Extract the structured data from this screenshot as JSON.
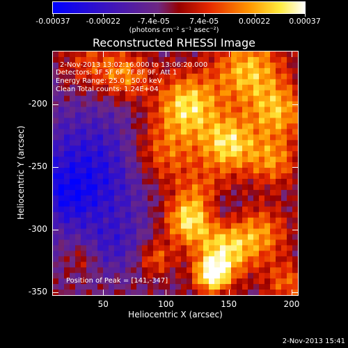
{
  "colorbar": {
    "ticks": [
      "-0.00037",
      "-0.00022",
      "-7.4e-05",
      "7.4e-05",
      "0.00022",
      "0.00037"
    ],
    "unit": "(photons cm⁻² s⁻¹ asec⁻²)"
  },
  "title": "Reconstructed RHESSI Image",
  "info": {
    "time_range": "2-Nov-2013 13:02:16.000 to 13:06:20.000",
    "detectors": "Detectors: 3F 5F 6F 7F 8F 9F, Att 1",
    "energy_range": "Energy Range: 25.0 - 50.0 keV",
    "clean": "Clean    Total counts: 1.24E+04",
    "peak": "Position of Peak = [141,-347]"
  },
  "timestamp": "2-Nov-2013 15:41",
  "chart_data": {
    "type": "heatmap",
    "title": "Reconstructed RHESSI Image",
    "xlabel": "Heliocentric X (arcsec)",
    "ylabel": "Heliocentric Y (arcsec)",
    "xlim": [
      10,
      205
    ],
    "ylim": [
      -352,
      -158
    ],
    "x_ticks": [
      50,
      100,
      150,
      200
    ],
    "y_ticks": [
      -350,
      -300,
      -250,
      -200
    ],
    "colorbar_range": [
      -0.00037,
      0.00037
    ],
    "colormap": "purple-blue to red-orange-yellow-white",
    "peak_position": [
      141,
      -347
    ]
  }
}
